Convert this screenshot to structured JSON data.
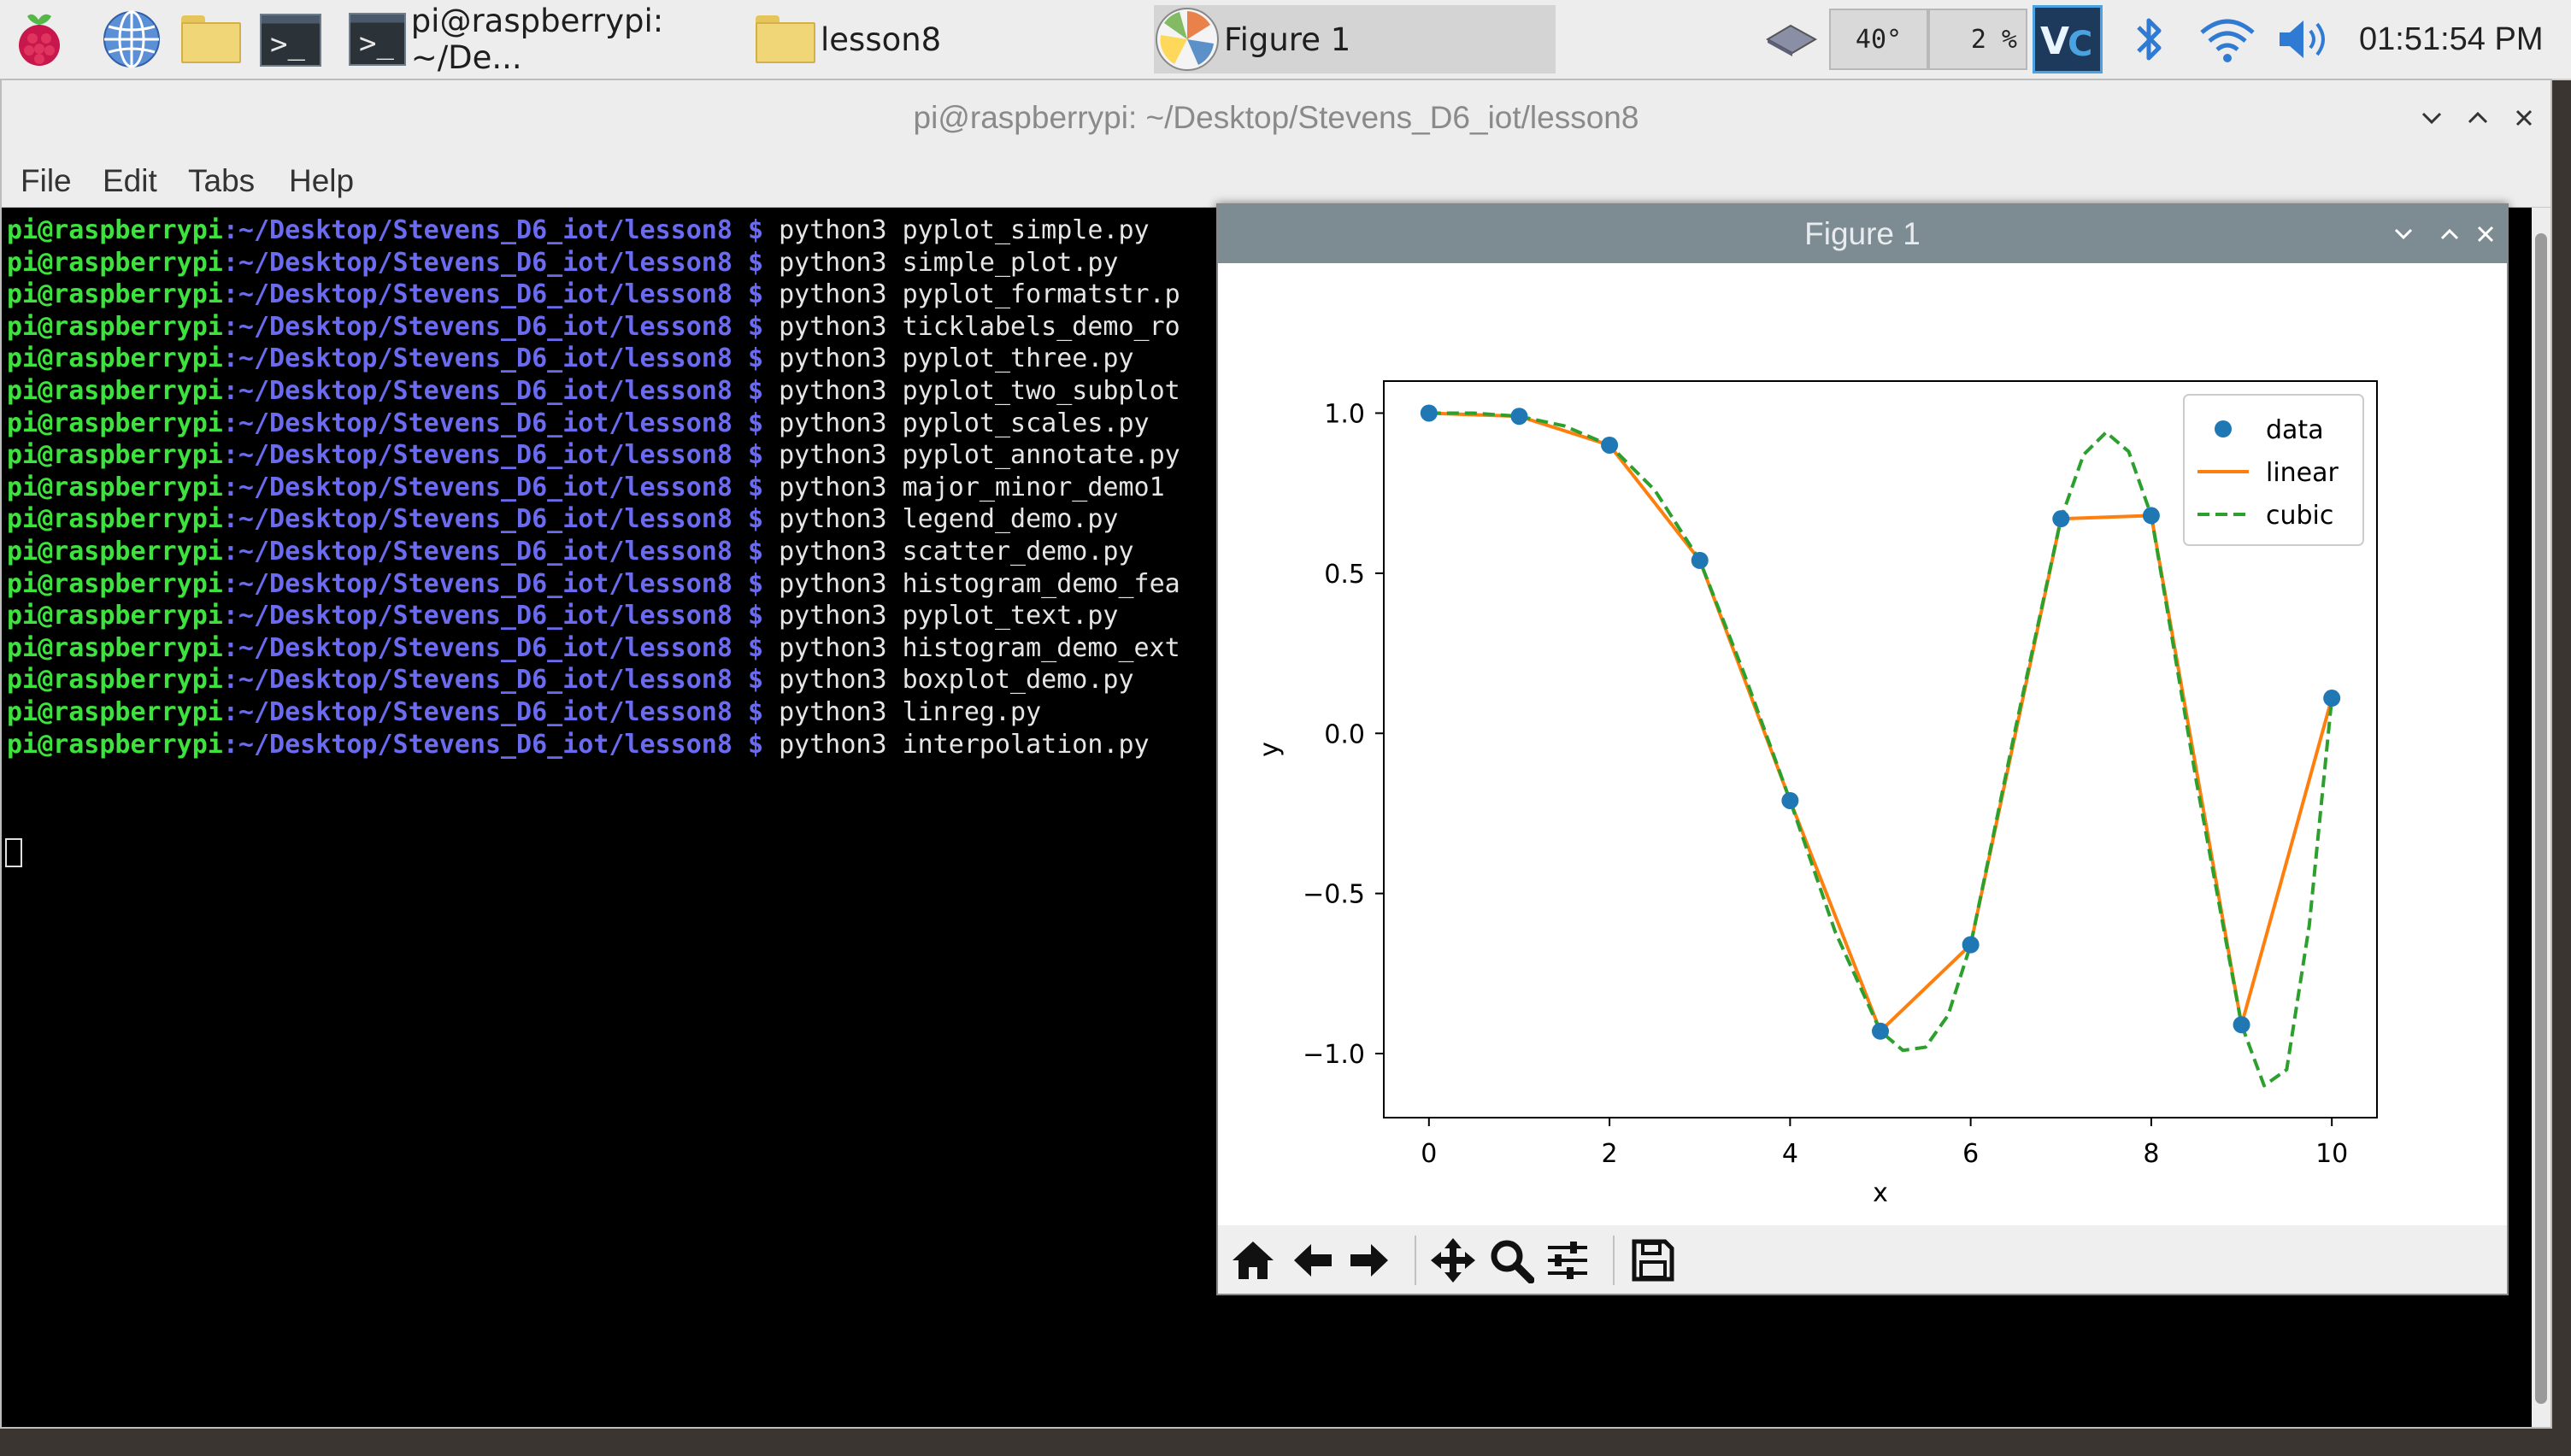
{
  "taskbar": {
    "tasks": [
      {
        "label": "pi@raspberrypi: ~/De..."
      },
      {
        "label": "lesson8"
      },
      {
        "label": "Figure 1"
      }
    ],
    "cpu_temp": "40°",
    "cpu_usage": "2 %",
    "clock": "01:51:54 PM"
  },
  "terminal": {
    "title": "pi@raspberrypi: ~/Desktop/Stevens_D6_iot/lesson8",
    "menu": [
      "File",
      "Edit",
      "Tabs",
      "Help"
    ],
    "prompt_user": "pi@raspberrypi",
    "prompt_path": ":~/Desktop/Stevens_D6_iot/lesson8 $ ",
    "commands": [
      "python3 pyplot_simple.py",
      "python3 simple_plot.py",
      "python3 pyplot_formatstr.p",
      "python3 ticklabels_demo_ro",
      "python3 pyplot_three.py",
      "python3 pyplot_two_subplot",
      "python3 pyplot_scales.py",
      "python3 pyplot_annotate.py",
      "python3 major_minor_demo1",
      "python3 legend_demo.py",
      "python3 scatter_demo.py",
      "python3 histogram_demo_fea",
      "python3 pyplot_text.py",
      "python3 histogram_demo_ext",
      "python3 boxplot_demo.py",
      "python3 linreg.py",
      "python3 interpolation.py"
    ]
  },
  "figure": {
    "title": "Figure 1"
  },
  "chart_data": {
    "type": "line",
    "title": "",
    "xlabel": "x",
    "ylabel": "y",
    "xlim": [
      -0.5,
      10.5
    ],
    "ylim": [
      -1.2,
      1.1
    ],
    "xticks": [
      0,
      2,
      4,
      6,
      8,
      10
    ],
    "yticks": [
      -1.0,
      -0.5,
      0.0,
      0.5,
      1.0
    ],
    "xtick_labels": [
      "0",
      "2",
      "4",
      "6",
      "8",
      "10"
    ],
    "ytick_labels": [
      "−1.0",
      "−0.5",
      "0.0",
      "0.5",
      "1.0"
    ],
    "legend_position": "top-right",
    "grid": false,
    "series": [
      {
        "name": "data",
        "style": "points",
        "color": "#1f77b4",
        "x": [
          0,
          1,
          2,
          3,
          4,
          5,
          6,
          7,
          8,
          9,
          10
        ],
        "y": [
          1.0,
          0.99,
          0.9,
          0.54,
          -0.21,
          -0.93,
          -0.66,
          0.67,
          0.68,
          -0.91,
          0.11
        ]
      },
      {
        "name": "linear",
        "style": "solid",
        "color": "#ff7f0e",
        "x": [
          0,
          1,
          2,
          3,
          4,
          5,
          6,
          7,
          8,
          9,
          10
        ],
        "y": [
          1.0,
          0.99,
          0.9,
          0.54,
          -0.21,
          -0.93,
          -0.66,
          0.67,
          0.68,
          -0.91,
          0.11
        ]
      },
      {
        "name": "cubic",
        "style": "dashed",
        "color": "#2ca02c",
        "x": [
          0,
          0.5,
          1,
          1.5,
          2,
          2.5,
          3,
          3.5,
          4,
          4.5,
          5,
          5.25,
          5.5,
          5.75,
          6,
          6.5,
          7,
          7.25,
          7.5,
          7.75,
          8,
          8.5,
          9,
          9.25,
          9.5,
          9.75,
          10
        ],
        "y": [
          1.0,
          1.0,
          0.99,
          0.96,
          0.9,
          0.76,
          0.54,
          0.18,
          -0.21,
          -0.62,
          -0.93,
          -0.99,
          -0.98,
          -0.88,
          -0.66,
          0.02,
          0.67,
          0.87,
          0.94,
          0.88,
          0.68,
          -0.15,
          -0.91,
          -1.1,
          -1.05,
          -0.6,
          0.11
        ]
      }
    ]
  }
}
